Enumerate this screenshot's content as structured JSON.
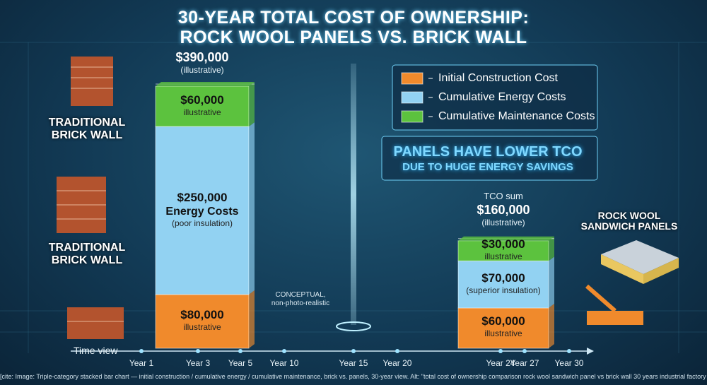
{
  "title": [
    "30-YEAR TOTAL COST OF OWNERSHIP:",
    "ROCK WOOL PANELS VS. BRICK WALL"
  ],
  "chart_data": {
    "type": "stacked-bar",
    "categories": [
      "TRADITIONAL BRICK WALL",
      "ROCK WOOL SANDWICH PANELS"
    ],
    "series": [
      {
        "name": "Initial Construction Cost",
        "color": "#f08a2c",
        "values": [
          80000,
          60000
        ],
        "value_labels": [
          "$80,000",
          "$60,000"
        ],
        "notes": [
          [
            "illustrative"
          ],
          [
            "illustrative"
          ]
        ]
      },
      {
        "name": "Cumulative Energy Costs",
        "color": "#92d2f2",
        "values": [
          250000,
          70000
        ],
        "value_labels": [
          "$250,000",
          "$70,000"
        ],
        "notes": [
          [
            "Energy Costs",
            "(poor insulation)"
          ],
          [
            "(superior insulation)"
          ]
        ]
      },
      {
        "name": "Cumulative Maintenance Costs",
        "color": "#5cc23e",
        "values": [
          60000,
          30000
        ],
        "value_labels": [
          "$60,000",
          "$30,000"
        ],
        "notes": [
          [
            "illustrative"
          ],
          [
            "illustrative"
          ]
        ]
      }
    ],
    "totals": [
      390000,
      160000
    ],
    "total_labels": [
      "$390,000",
      "$160,000"
    ],
    "total_notes": [
      "(illustrative)",
      "(illustrative)"
    ],
    "total_captions": [
      null,
      "TCO sum"
    ],
    "time_axis": {
      "label": "Time view",
      "ticks": [
        "Year 1",
        "Year 3",
        "Year 5",
        "Year 10",
        "Year 15",
        "Year 20",
        "Year 24",
        "Year 27",
        "Year 30"
      ]
    }
  },
  "callout": [
    "PANELS HAVE LOWER TCO",
    "DUE TO HUGE ENERGY SAVINGS"
  ],
  "note": [
    "CONCEPTUAL,",
    "non-photo-realistic"
  ],
  "caption": "[cite: Image: Triple-category stacked bar chart — initial construction / cumulative energy / cumulative maintenance, brick vs. panels, 30-year view. Alt: \"total cost of ownership comparison rock wool sandwich panel vs brick wall 30 years industrial factory all three cost categories\"]"
}
